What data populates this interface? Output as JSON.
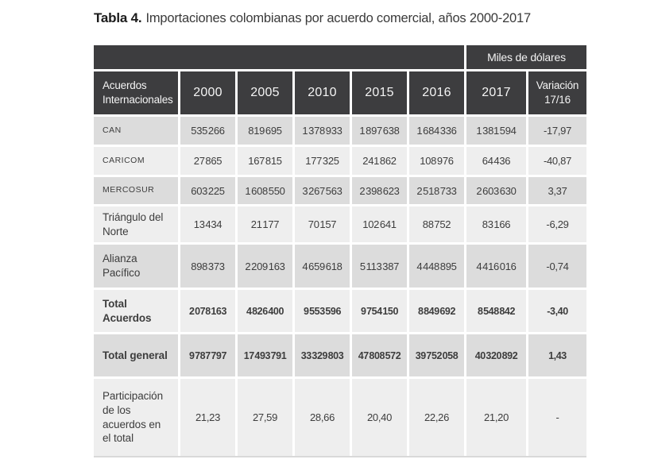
{
  "title": {
    "prefix": "Tabla 4.",
    "rest": "Importaciones colombianas por acuerdo comercial, años 2000-2017"
  },
  "colors": {
    "header_bg": "#3d3d3f",
    "header_text": "#f4f4f4",
    "row_dark": "#dcdcdc",
    "row_light": "#eeeeee",
    "text": "#3d3d3d",
    "title": "#3a3a3a"
  },
  "chart_data": {
    "type": "table",
    "title": "Tabla 4. Importaciones colombianas por acuerdo comercial, años 2000-2017",
    "unit_header": "Miles de dólares",
    "corner_header": "Acuerdos Internacionales",
    "columns": [
      "2000",
      "2005",
      "2010",
      "2015",
      "2016",
      "2017",
      "Variación 17/16"
    ],
    "rows": [
      {
        "label": "CAN",
        "style": "acronym",
        "shade": "dark",
        "values": [
          "535 266",
          "819 695",
          "1 378 933",
          "1 897 638",
          "1 684 336",
          "1 381 594",
          "-17,97"
        ]
      },
      {
        "label": "CARICOM",
        "style": "acronym",
        "shade": "light",
        "values": [
          "27 865",
          "167 815",
          "177 325",
          "241 862",
          "108 976",
          "64 436",
          "-40,87"
        ]
      },
      {
        "label": "MERCOSUR",
        "style": "acronym",
        "shade": "dark",
        "values": [
          "603 225",
          "1 608 550",
          "3 267 563",
          "2 398 623",
          "2 518 733",
          "2 603 630",
          "3,37"
        ]
      },
      {
        "label": "Triángulo del Norte",
        "style": "plain",
        "shade": "light",
        "values": [
          "13 434",
          "21 177",
          "70 157",
          "102 641",
          "88 752",
          "83 166",
          "-6,29"
        ]
      },
      {
        "label": "Alianza Pacífico",
        "style": "plain",
        "shade": "dark",
        "values": [
          "898 373",
          "2 209 163",
          "4 659 618",
          "5 113 387",
          "4 448 895",
          "4 416 016",
          "-0,74"
        ]
      },
      {
        "label": "Total Acuerdos",
        "style": "bold",
        "shade": "light",
        "values": [
          "2 078 163",
          "4 826 400",
          "9 553 596",
          "9 754 150",
          "8 849 692",
          "8 548 842",
          "-3,40"
        ]
      },
      {
        "label": "Total general",
        "style": "bold",
        "shade": "dark",
        "values": [
          "9 787 797",
          "17 493 791",
          "33 329 803",
          "47 808 572",
          "39 752 058",
          "40 320 892",
          "1,43"
        ]
      },
      {
        "label": "Participación de los acuerdos en el total",
        "style": "plain",
        "shade": "light",
        "values": [
          "21,23",
          "27,59",
          "28,66",
          "20,40",
          "22,26",
          "21,20",
          "-"
        ]
      }
    ]
  }
}
